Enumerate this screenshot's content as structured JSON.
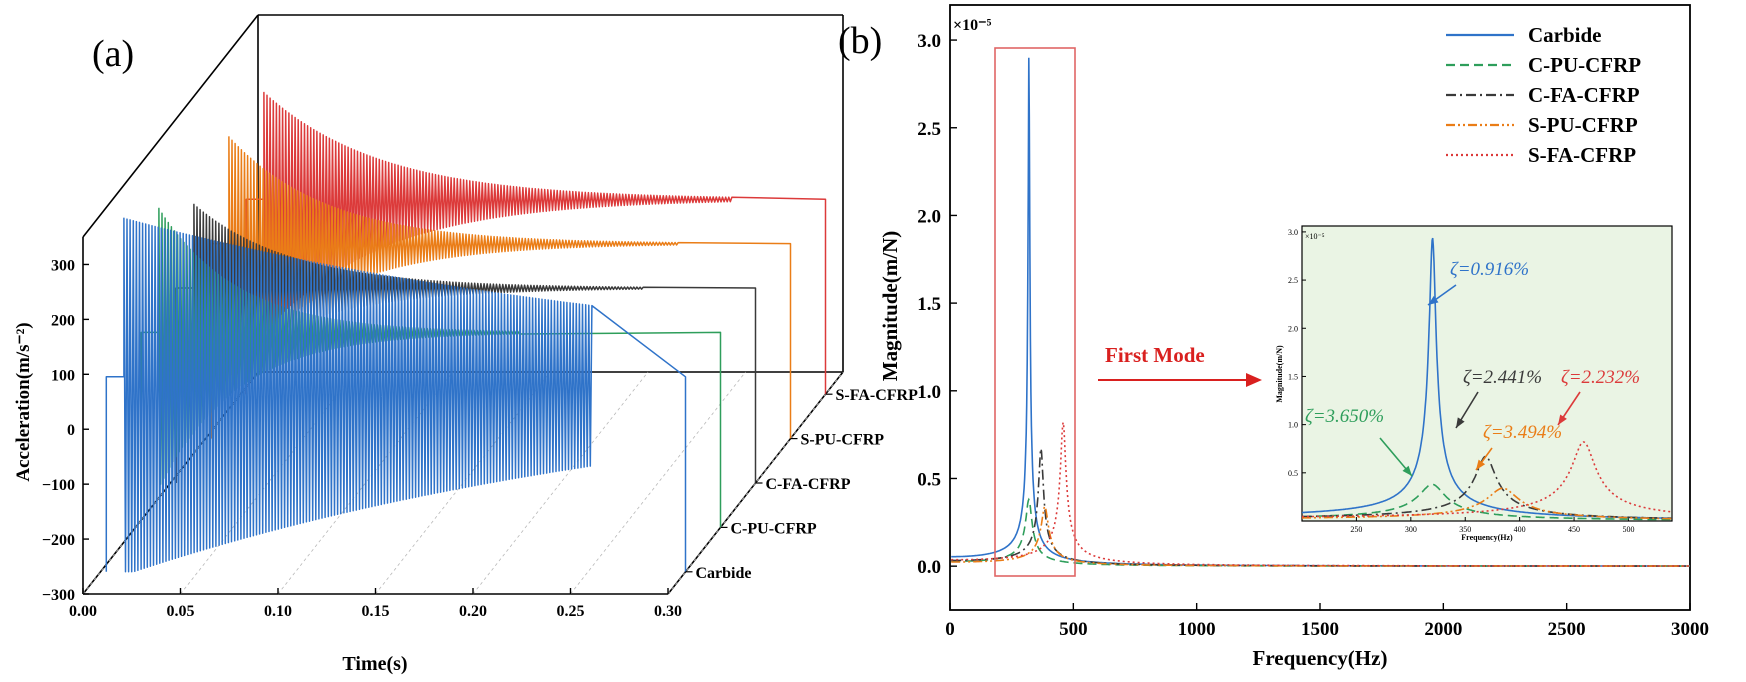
{
  "colors": {
    "carbide": "#2f73c9",
    "c_pu_cfrp": "#2e9e5b",
    "c_fa_cfrp": "#3a3a3a",
    "s_pu_cfrp": "#ea7d17",
    "s_fa_cfrp": "#dc3a3a",
    "inset_bg": "#eaf4e4",
    "box": "#e06666",
    "arrow": "#d9201f"
  },
  "chart_data": [
    {
      "type": "line",
      "panel_label": "(a)",
      "xlabel": "Time(s)",
      "ylabel": "Acceleration(m/s⁻²)",
      "xlim": [
        0,
        0.3
      ],
      "ylim": [
        -300,
        350
      ],
      "x_ticks": [
        "0.00",
        "0.05",
        "0.10",
        "0.15",
        "0.20",
        "0.25",
        "0.30"
      ],
      "y_ticks": [
        "−300",
        "−200",
        "−100",
        "0",
        "100",
        "200",
        "300"
      ],
      "depth_labels": [
        "Carbide",
        "C-PU-CFRP",
        "C-FA-CFRP",
        "S-PU-CFRP",
        "S-FA-CFRP"
      ],
      "series": [
        {
          "name": "Carbide",
          "impact_time": 0.012,
          "peak": 330,
          "rest_level": 55,
          "decay_time": 0.3,
          "end_time": 0.3
        },
        {
          "name": "C-PU-CFRP",
          "impact_time": 0.012,
          "peak": 270,
          "rest_level": 55,
          "decay_time": 0.04,
          "end_time": 0.3
        },
        {
          "name": "C-FA-CFRP",
          "impact_time": 0.012,
          "peak": 200,
          "rest_level": 55,
          "decay_time": 0.05,
          "end_time": 0.3
        },
        {
          "name": "S-PU-CFRP",
          "impact_time": 0.012,
          "peak": 240,
          "rest_level": 55,
          "decay_time": 0.05,
          "end_time": 0.3
        },
        {
          "name": "S-FA-CFRP",
          "impact_time": 0.012,
          "peak": 240,
          "rest_level": 55,
          "decay_time": 0.06,
          "end_time": 0.3
        }
      ]
    },
    {
      "type": "line",
      "panel_label": "(b)",
      "xlabel": "Frequency(Hz)",
      "ylabel": "Magnitude(m/N)",
      "y_multiplier": "×10⁻⁵",
      "xlim": [
        0,
        3000
      ],
      "ylim": [
        -0.25,
        3.2
      ],
      "x_ticks": [
        0,
        500,
        1000,
        1500,
        2000,
        2500,
        3000
      ],
      "y_ticks": [
        "0.0",
        "0.5",
        "1.0",
        "1.5",
        "2.0",
        "2.5",
        "3.0"
      ],
      "legend_position": "top-right",
      "series": [
        {
          "name": "Carbide",
          "style": "solid",
          "f_peak": 320,
          "peak": 2.94,
          "zeta": 0.00916
        },
        {
          "name": "C-PU-CFRP",
          "style": "dashed",
          "f_peak": 320,
          "peak": 0.38,
          "zeta": 0.0365
        },
        {
          "name": "C-FA-CFRP",
          "style": "dash-dot",
          "f_peak": 369,
          "peak": 0.67,
          "zeta": 0.02441
        },
        {
          "name": "S-PU-CFRP",
          "style": "dash-dot-dot",
          "f_peak": 385,
          "peak": 0.34,
          "zeta": 0.03494
        },
        {
          "name": "S-FA-CFRP",
          "style": "dotted",
          "f_peak": 459,
          "peak": 0.82,
          "zeta": 0.02232
        }
      ],
      "annotation": "First Mode",
      "inset": {
        "xlim": [
          200,
          540
        ],
        "ylim": [
          0,
          3.0
        ],
        "x_ticks": [
          250,
          300,
          350,
          400,
          450,
          500
        ],
        "y_ticks": [
          "0.5",
          "1.0",
          "1.5",
          "2.0",
          "2.5",
          "3.0"
        ],
        "xlabel": "Frequency(Hz)",
        "ylabel": "Magnitude(m/N)",
        "y_multiplier": "×10⁻⁵",
        "damping_labels": [
          {
            "series": "Carbide",
            "text": "ζ=0.916%"
          },
          {
            "series": "C-PU-CFRP",
            "text": "ζ=3.650%"
          },
          {
            "series": "C-FA-CFRP",
            "text": "ζ=2.441%"
          },
          {
            "series": "S-PU-CFRP",
            "text": "ζ=3.494%"
          },
          {
            "series": "S-FA-CFRP",
            "text": "ζ=2.232%"
          }
        ]
      }
    }
  ]
}
